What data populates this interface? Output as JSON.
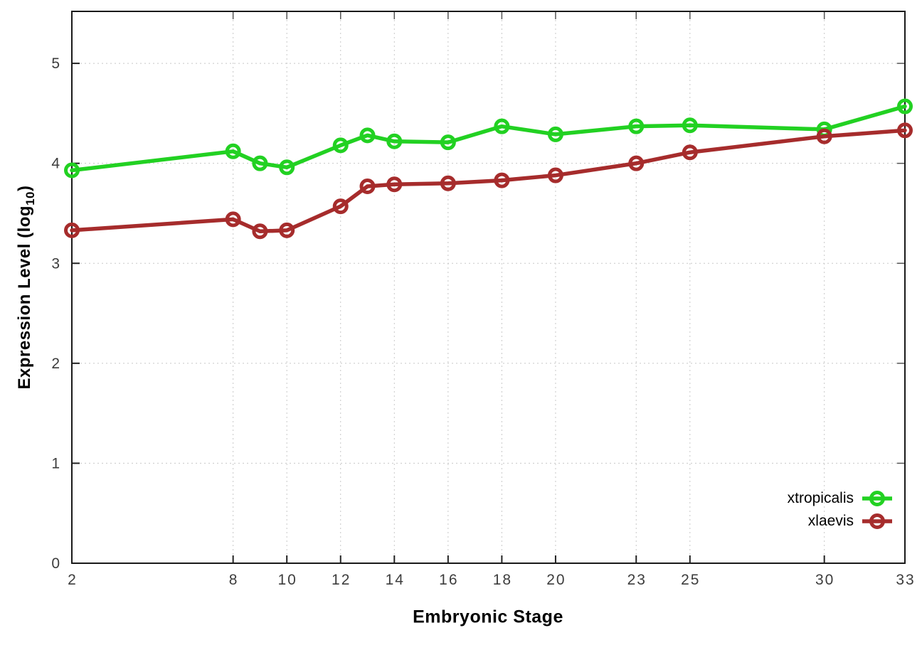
{
  "figure": {
    "background": "#ffffff",
    "ylabel_pre": "Expression Level (log",
    "ylabel_sub": "10",
    "ylabel_post": ")",
    "xlabel": "Embryonic Stage"
  },
  "chart_data": {
    "type": "line",
    "title": "",
    "xlabel": "Embryonic Stage",
    "ylabel": "Expression Level (log10)",
    "x": [
      2,
      8,
      9,
      10,
      12,
      13,
      14,
      16,
      18,
      20,
      23,
      25,
      30,
      33
    ],
    "xtick_labels": [
      "2",
      "8",
      "10",
      "12",
      "14",
      "16",
      "18",
      "20",
      "23",
      "25",
      "30",
      "33"
    ],
    "xtick_values": [
      2,
      8,
      10,
      12,
      14,
      16,
      18,
      20,
      23,
      25,
      30,
      33
    ],
    "ytick_labels": [
      "0",
      "1",
      "2",
      "3",
      "4",
      "5"
    ],
    "ytick_values": [
      0,
      1,
      2,
      3,
      4,
      5
    ],
    "xlim": [
      2,
      33
    ],
    "ylim": [
      0,
      5.52
    ],
    "grid": true,
    "legend_position": "inside-bottom-right",
    "grid_color": "#c8c8c8",
    "border_color": "#1a1a1a",
    "series": [
      {
        "name": "xtropicalis",
        "color": "#22d122",
        "marker": "open-circle",
        "values": [
          3.93,
          4.12,
          4.0,
          3.96,
          4.18,
          4.28,
          4.22,
          4.21,
          4.37,
          4.29,
          4.37,
          4.38,
          4.34,
          4.57
        ]
      },
      {
        "name": "xlaevis",
        "color": "#a62c2c",
        "marker": "open-circle",
        "values": [
          3.33,
          3.44,
          3.32,
          3.33,
          3.57,
          3.77,
          3.79,
          3.8,
          3.83,
          3.88,
          4.0,
          4.11,
          4.27,
          4.33
        ]
      }
    ]
  }
}
